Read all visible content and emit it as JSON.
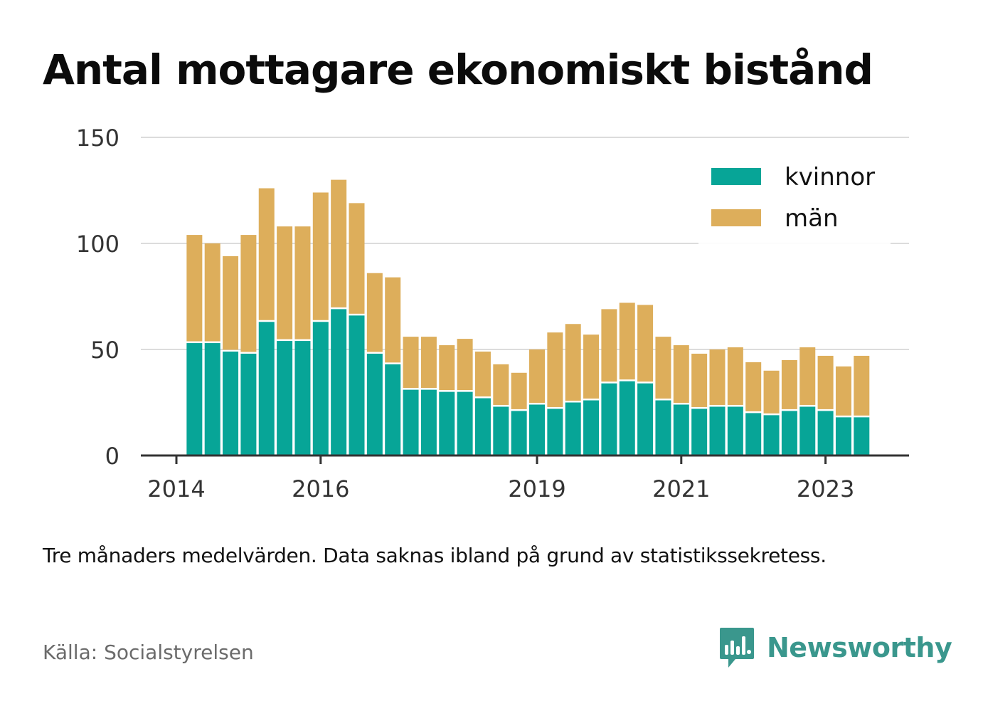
{
  "title": "Antal mottagare ekonomiskt bistånd",
  "note": "Tre månaders medelvärden. Data saknas ibland på grund av statistikssekretess.",
  "source": "Källa: Socialstyrelsen",
  "brand": {
    "name": "Newsworthy",
    "icon": "newsworthy-logo-icon",
    "color": "#3a978d"
  },
  "chart_data": {
    "type": "bar",
    "stacked": true,
    "title": "Antal mottagare ekonomiskt bistånd",
    "xlabel": "",
    "ylabel": "",
    "ylim": [
      0,
      150
    ],
    "y_ticks": [
      0,
      50,
      100,
      150
    ],
    "x_ticks": [
      {
        "label": "2014",
        "period": 0
      },
      {
        "label": "2016",
        "period": 8
      },
      {
        "label": "2019",
        "period": 20
      },
      {
        "label": "2021",
        "period": 28
      },
      {
        "label": "2023",
        "period": 36
      }
    ],
    "periods_start": 1,
    "periods_end": 39,
    "grid": true,
    "legend": "top-right",
    "series": [
      {
        "name": "kvinnor",
        "color": "#07a597",
        "values": [
          53,
          53,
          49,
          48,
          63,
          54,
          54,
          63,
          69,
          66,
          48,
          43,
          31,
          31,
          30,
          30,
          27,
          23,
          21,
          24,
          22,
          25,
          26,
          34,
          35,
          34,
          26,
          24,
          22,
          23,
          23,
          20,
          19,
          21,
          23,
          21,
          18,
          18
        ]
      },
      {
        "name": "män",
        "color": "#ddae5b",
        "values": [
          51,
          47,
          45,
          56,
          63,
          54,
          54,
          61,
          61,
          53,
          38,
          41,
          25,
          25,
          22,
          25,
          22,
          20,
          18,
          26,
          36,
          37,
          31,
          35,
          37,
          37,
          30,
          28,
          26,
          27,
          28,
          24,
          21,
          24,
          28,
          26,
          24,
          29
        ]
      }
    ]
  }
}
